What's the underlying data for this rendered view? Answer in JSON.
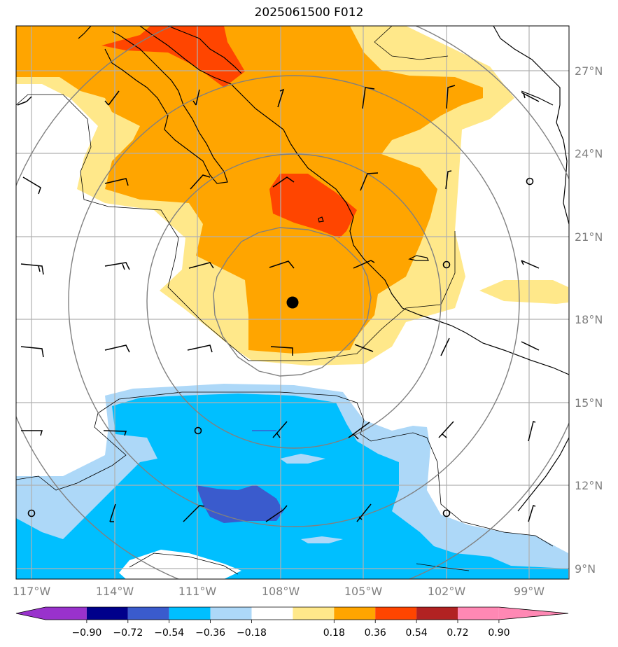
{
  "title": "2025061500 F012",
  "map": {
    "lon_labels": [
      "117°W",
      "114°W",
      "111°W",
      "108°W",
      "105°W",
      "102°W",
      "99°W"
    ],
    "lat_labels": [
      "27°N",
      "24°N",
      "21°N",
      "18°N",
      "15°N",
      "12°N",
      "9°N"
    ],
    "center_marker": "storm-center-dot",
    "range_rings": 4,
    "gridlines": true
  },
  "colorbar": {
    "tick_labels": [
      "−0.90",
      "−0.72",
      "−0.54",
      "−0.36",
      "−0.18",
      "0.18",
      "0.36",
      "0.54",
      "0.72",
      "0.90"
    ],
    "colors": [
      "#9932cc",
      "#00008b",
      "#3a5bcd",
      "#00bfff",
      "#add8f8",
      "#ffffff",
      "#ffe88a",
      "#ffa500",
      "#ff4500",
      "#b22222",
      "#ff88b4"
    ],
    "extend": "both"
  }
}
